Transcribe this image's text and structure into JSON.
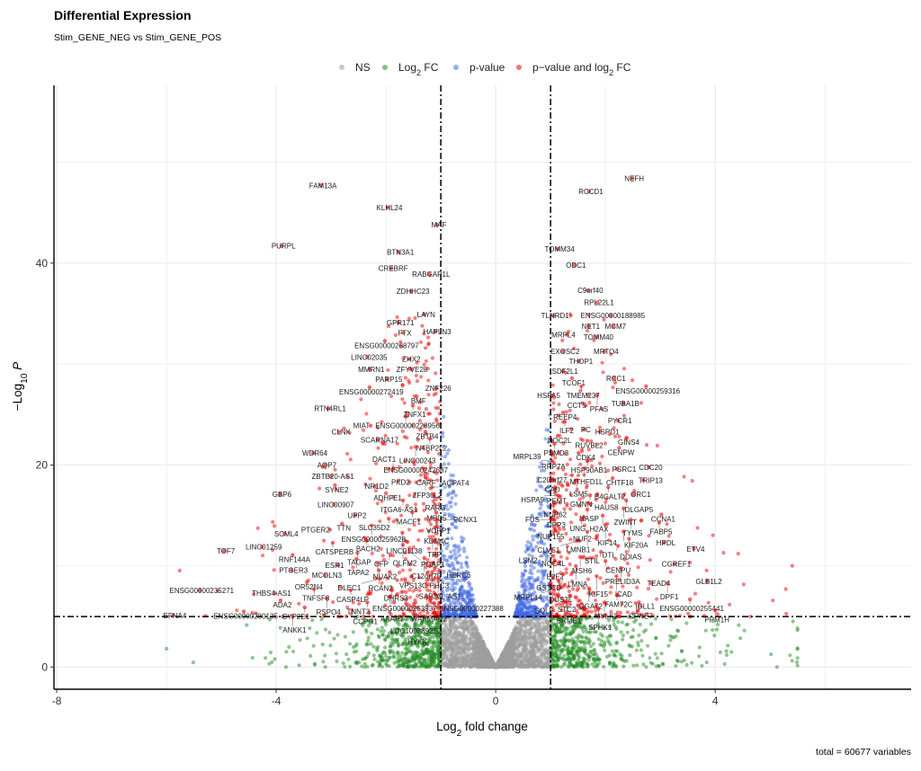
{
  "chart_data": {
    "type": "scatter",
    "title": "Differential Expression",
    "subtitle": "Stim_GENE_NEG vs Stim_GENE_POS",
    "caption": "total = 60677 variables",
    "xlabel": {
      "pre": "Log",
      "sub": "2",
      "post": " fold change"
    },
    "ylabel": {
      "pre": "−Log",
      "sub": "10",
      "post": " P"
    },
    "xlim": [
      -8.05,
      7.57
    ],
    "ylim": [
      -2.2,
      57.6
    ],
    "x_ticks": [
      -8,
      -4,
      0,
      4
    ],
    "y_ticks": [
      0,
      20,
      40
    ],
    "x_tick_labels": [
      "-8",
      "-4",
      "0",
      "4"
    ],
    "y_tick_labels": [
      "0",
      "20",
      "40"
    ],
    "grid": true,
    "fc_cutoff": 1,
    "p_cutoff_log10": 5,
    "legend_position": "top",
    "legend": [
      {
        "pre": "NS",
        "sub": "",
        "post": "",
        "color": "#9e9e9e"
      },
      {
        "pre": "Log",
        "sub": "2",
        "post": " FC",
        "color": "#228b22"
      },
      {
        "pre": "p-value",
        "sub": "",
        "post": "",
        "color": "#4169e1"
      },
      {
        "pre": "p−value and log",
        "sub": "2",
        "post": " FC",
        "color": "#ee0000"
      }
    ],
    "colors": {
      "ns": "#9e9e9e",
      "fc": "#228b22",
      "p": "#4169e1",
      "both": "#ee0000",
      "axis": "#000000",
      "grid": "#ebebeb"
    },
    "total_variables": 60677,
    "labeled_points": [
      [
        "FAM13A",
        -3.18,
        47.7
      ],
      [
        "KLHL24",
        -1.97,
        45.5
      ],
      [
        "MAF",
        -1.07,
        43.8
      ],
      [
        "PURPL",
        -3.9,
        41.7
      ],
      [
        "BTN3A1",
        -1.77,
        41.1
      ],
      [
        "CREBRF",
        -1.9,
        39.5
      ],
      [
        "RABGAP1L",
        -1.21,
        38.9
      ],
      [
        "ZDHHC23",
        -1.54,
        37.2
      ],
      [
        "LAYN",
        -1.3,
        34.9
      ],
      [
        "GPR171",
        -1.77,
        34.1
      ],
      [
        "FTX",
        -1.69,
        33.1
      ],
      [
        "HAPLN3",
        -1.1,
        33.2
      ],
      [
        "ENSG00000268797",
        -2.02,
        32.3
      ],
      [
        "LINC02035",
        -2.34,
        30.7
      ],
      [
        "ZHX2",
        -1.57,
        30.5
      ],
      [
        "MMRN1",
        -2.3,
        29.5
      ],
      [
        "ZFYVE28",
        -1.56,
        29.5
      ],
      [
        "PARP15",
        -1.98,
        28.5
      ],
      [
        "ENSG00000272419",
        -2.3,
        27.7
      ],
      [
        "ZNF226",
        -1.08,
        27.6
      ],
      [
        "BMF",
        -1.44,
        26.8
      ],
      [
        "RTN4RL1",
        -3.05,
        25.6
      ],
      [
        "ZNFX1",
        -1.51,
        25.9
      ],
      [
        "ENSG00000228956",
        -1.64,
        24.8
      ],
      [
        "MIAT",
        -2.28,
        23.9
      ],
      [
        "CLNK",
        -2.85,
        23.3
      ],
      [
        "ZBTB4",
        -1.28,
        23.3
      ],
      [
        "SCARNA17",
        -2.15,
        22.5
      ],
      [
        "N4BP2L2",
        -1.2,
        22.6
      ],
      [
        "LINC00243",
        -1.46,
        21.8
      ],
      [
        "WDR64",
        -3.33,
        21.2
      ],
      [
        "ENSG00000242687",
        -1.49,
        20.4
      ],
      [
        "AQP7",
        -3.11,
        20.0
      ],
      [
        "DACT1",
        -1.87,
        19.7
      ],
      [
        "CARF",
        -1.3,
        19.6
      ],
      [
        "ZBTB20-AS1",
        -3.0,
        18.9
      ],
      [
        "ZFP36L2",
        -1.28,
        18.8
      ],
      [
        "SYNE2",
        -2.93,
        18.0
      ],
      [
        "PKD2",
        -1.57,
        18.3
      ],
      [
        "NR1D2",
        -2.2,
        17.9
      ],
      [
        "AGPAT4",
        -1.16,
        17.8
      ],
      [
        "ADHFE1",
        -2.0,
        17.2
      ],
      [
        "GBP6",
        -3.93,
        17.1
      ],
      [
        "RARG",
        -1.13,
        17.1
      ],
      [
        "ITGA6-AS1",
        -1.69,
        16.5
      ],
      [
        "MBD5",
        -1.11,
        16.1
      ],
      [
        "LINC00907",
        -2.95,
        16.1
      ],
      [
        "MACF1",
        -1.52,
        15.3
      ],
      [
        "VOPP1",
        -1.08,
        15.3
      ],
      [
        "UPP2",
        -2.56,
        15.0
      ],
      [
        "SLC35D2",
        -1.95,
        14.7
      ],
      [
        "PCNX1",
        -1.08,
        14.6
      ],
      [
        "TTN",
        -2.8,
        14.2
      ],
      [
        "ENSG00000259628",
        -2.26,
        14.0
      ],
      [
        "KDM4C",
        -1.11,
        13.8
      ],
      [
        "PTGER2",
        -3.02,
        13.6
      ],
      [
        "LINC01138",
        -1.7,
        13.3
      ],
      [
        "SCML4",
        -3.85,
        13.2
      ],
      [
        "CATSPERB",
        -2.97,
        12.3
      ],
      [
        "BACH2",
        -2.36,
        12.6
      ],
      [
        "OLFM2",
        -1.69,
        12.1
      ],
      [
        "TPP",
        -1.15,
        12.5
      ],
      [
        "LINC01259",
        -4.26,
        11.9
      ],
      [
        "TOF7",
        -4.95,
        11.5
      ],
      [
        "RNF144A",
        -3.7,
        11.1
      ],
      [
        "PGAP1",
        -1.57,
        11.5
      ],
      [
        "TAGAP",
        -2.52,
        11.3
      ],
      [
        "CFP",
        -1.92,
        11.1
      ],
      [
        "C12orf75",
        -1.3,
        10.8
      ],
      [
        "TAPA2",
        -2.54,
        10.7
      ],
      [
        "NUAK2",
        -2.15,
        10.3
      ],
      [
        "HERC6",
        -1.2,
        10.0
      ],
      [
        "ESR1",
        -2.87,
        10.1
      ],
      [
        "PTGER3",
        -3.72,
        9.6
      ],
      [
        "RCAN2",
        -2.13,
        9.6
      ],
      [
        "VPS13C",
        -1.93,
        9.4
      ],
      [
        "PHC3",
        -1.16,
        9.4
      ],
      [
        "MCOLN3",
        -3.11,
        9.1
      ],
      [
        "DLEC1",
        -2.11,
        8.75
      ],
      [
        "SAP30L-AS1",
        -1.05,
        8.8
      ],
      [
        "OR52N4",
        -3.44,
        8.4
      ],
      [
        "CASP4LP",
        -2.64,
        7.6
      ],
      [
        "ENSG00000253937",
        -1.89,
        7.6
      ],
      [
        "TNFSF8",
        -3.31,
        7.7
      ],
      [
        "ENSG00000235271",
        -5.39,
        7.6
      ],
      [
        "AKAP7",
        -1.92,
        7.0
      ],
      [
        "WAKMAR2",
        -1.25,
        7.0
      ],
      [
        "THBS4-AS1",
        -4.02,
        7.3
      ],
      [
        "ADA2",
        -3.92,
        6.6
      ],
      [
        "RSPO4",
        -3.08,
        6.8
      ],
      [
        "TNNT3",
        -2.34,
        6.4
      ],
      [
        "DHRS3",
        -1.85,
        6.4
      ],
      [
        "LOC100289230",
        -1.49,
        6.25
      ],
      [
        "CYP2E1",
        -3.48,
        5.9
      ],
      [
        "ENSG00000227388",
        -0.97,
        5.8
      ],
      [
        "ENSG00000280135",
        -4.59,
        5.5
      ],
      [
        "CCPG1",
        -2.31,
        5.4
      ],
      [
        "HYKK",
        -1.46,
        5.2
      ],
      [
        "EFNA4",
        -5.88,
        5.1
      ],
      [
        "ANKK1",
        -3.7,
        5.0
      ],
      [
        "NEFH",
        2.49,
        48.4
      ],
      [
        "RCCD1",
        1.7,
        47.1
      ],
      [
        "TOMM34",
        1.13,
        41.4
      ],
      [
        "ODC1",
        1.43,
        39.8
      ],
      [
        "C9orf40",
        1.69,
        37.3
      ],
      [
        "RPL22L1",
        1.85,
        36.1
      ],
      [
        "TLNRD1",
        1.05,
        34.8
      ],
      [
        "ENSG00000188985",
        2.1,
        34.8
      ],
      [
        "NET1",
        1.7,
        33.75
      ],
      [
        "MCM7",
        2.15,
        33.75
      ],
      [
        "MRPL4",
        1.3,
        32.9
      ],
      [
        "TOMM40",
        1.84,
        32.7
      ],
      [
        "EXOSC2",
        1.23,
        31.25
      ],
      [
        "MRTO4",
        1.98,
        31.25
      ],
      [
        "THOP1",
        1.52,
        30.3
      ],
      [
        "SDF2L1",
        1.23,
        29.3
      ],
      [
        "TCOF1",
        1.39,
        28.6
      ],
      [
        "RCC1",
        2.16,
        28.6
      ],
      [
        "TMEM237",
        1.56,
        27.8
      ],
      [
        "ENSG00000259316",
        2.74,
        27.8
      ],
      [
        "HSPA5",
        1.03,
        26.9
      ],
      [
        "PFAS",
        1.85,
        26.9
      ],
      [
        "CCT5",
        1.64,
        25.9
      ],
      [
        "TUBA1B",
        2.33,
        26.1
      ],
      [
        "REEP4",
        1.23,
        25.2
      ],
      [
        "ILF2",
        1.26,
        24.3
      ],
      [
        "PYCR1",
        2.23,
        24.4
      ],
      [
        "PC",
        1.61,
        23.5
      ],
      [
        "HSPD1",
        1.9,
        23.3
      ],
      [
        "NOC2L",
        1.13,
        22.9
      ],
      [
        "GINS4",
        2.39,
        22.7
      ],
      [
        "RUVBL2",
        1.67,
        22.4
      ],
      [
        "PSMD3",
        1.07,
        22.1
      ],
      [
        "CENPW",
        2.25,
        21.7
      ],
      [
        "RRP7A",
        1.02,
        21.2
      ],
      [
        "CDK4",
        1.51,
        21.2
      ],
      [
        "MRPL39",
        1.03,
        20.4
      ],
      [
        "HSP90AB1",
        1.67,
        20.4
      ],
      [
        "MTHFD1L",
        1.62,
        19.7
      ],
      [
        "CDC20",
        2.79,
        19.8
      ],
      [
        "PSRC1",
        2.21,
        19.6
      ],
      [
        "C20orf27",
        1.39,
        19.0
      ],
      [
        "CAD",
        1.0,
        18.5
      ],
      [
        "LSM5",
        1.48,
        18.5
      ],
      [
        "CHTF18",
        2.13,
        18.7
      ],
      [
        "TRIP13",
        2.69,
        18.5
      ],
      [
        "PEMT",
        1.08,
        17.8
      ],
      [
        "B4GALT2",
        2.05,
        17.8
      ],
      [
        "HSPA9",
        1.13,
        17.0
      ],
      [
        "GMNN",
        1.72,
        17.0
      ],
      [
        "ORC1",
        2.51,
        17.1
      ],
      [
        "NUP62",
        1.05,
        16.0
      ],
      [
        "HAUS8",
        1.69,
        16.25
      ],
      [
        "DLGAP5",
        2.38,
        16.5
      ],
      [
        "DPP3",
        1.07,
        15.4
      ],
      [
        "NASP",
        1.67,
        15.6
      ],
      [
        "ZWINT",
        2.33,
        15.7
      ],
      [
        "H2AX",
        1.95,
        15.0
      ],
      [
        "FUS",
        1.03,
        14.6
      ],
      [
        "UNG",
        1.56,
        14.6
      ],
      [
        "TYMS",
        2.46,
        14.6
      ],
      [
        "CCNA1",
        3.02,
        15.1
      ],
      [
        "FABP5",
        2.98,
        14.3
      ],
      [
        "KIF14",
        2.0,
        14.1
      ],
      [
        "NUP155",
        1.07,
        13.8
      ],
      [
        "LMNB1",
        1.67,
        13.4
      ],
      [
        "KIF20A",
        2.33,
        13.4
      ],
      [
        "CLVS1",
        1.52,
        12.5
      ],
      [
        "NUF2",
        1.84,
        12.7
      ],
      [
        "DDIAS",
        2.43,
        12.7
      ],
      [
        "HPDL",
        3.07,
        12.3
      ],
      [
        "ETV4",
        3.61,
        11.7
      ],
      [
        "NOC4L",
        1.02,
        11.6
      ],
      [
        "DTL",
        2.23,
        12.0
      ],
      [
        "STIL",
        1.92,
        11.4
      ],
      [
        "LSM2",
        1.05,
        11.0
      ],
      [
        "MSH6",
        1.54,
        10.9
      ],
      [
        "CENPU",
        2.0,
        10.5
      ],
      [
        "E2F2",
        1.05,
        10.3
      ],
      [
        "LMNA",
        1.46,
        10.0
      ],
      [
        "PRELID3A",
        2.28,
        9.8
      ],
      [
        "CGREF1",
        3.26,
        10.2
      ],
      [
        "GSTCD",
        1.23,
        9.2
      ],
      [
        "KIF15",
        1.84,
        9.0
      ],
      [
        "ICAD",
        2.2,
        9.0
      ],
      [
        "GLB1L2",
        3.85,
        8.5
      ],
      [
        "DUS3L",
        1.15,
        8.5
      ],
      [
        "TEAD4",
        2.84,
        8.3
      ],
      [
        "DPF1",
        3.13,
        8.3
      ],
      [
        "MRPL14",
        1.05,
        7.8
      ],
      [
        "DGAT2",
        1.7,
        7.8
      ],
      [
        "FAM72C",
        2.21,
        7.1
      ],
      [
        "STC2",
        1.36,
        7.05
      ],
      [
        "ENSG00000255441",
        3.54,
        6.7
      ],
      [
        "BRME1",
        1.3,
        6.4
      ],
      [
        "MYLK2",
        1.98,
        6.4
      ],
      [
        "CPNE7",
        2.61,
        6.4
      ],
      [
        "IGLL1",
        2.59,
        5.6
      ],
      [
        "PPM1H",
        4.0,
        5.6
      ],
      [
        "SQLE",
        1.05,
        5.6
      ],
      [
        "SPHK1",
        1.87,
        5.7
      ]
    ]
  }
}
